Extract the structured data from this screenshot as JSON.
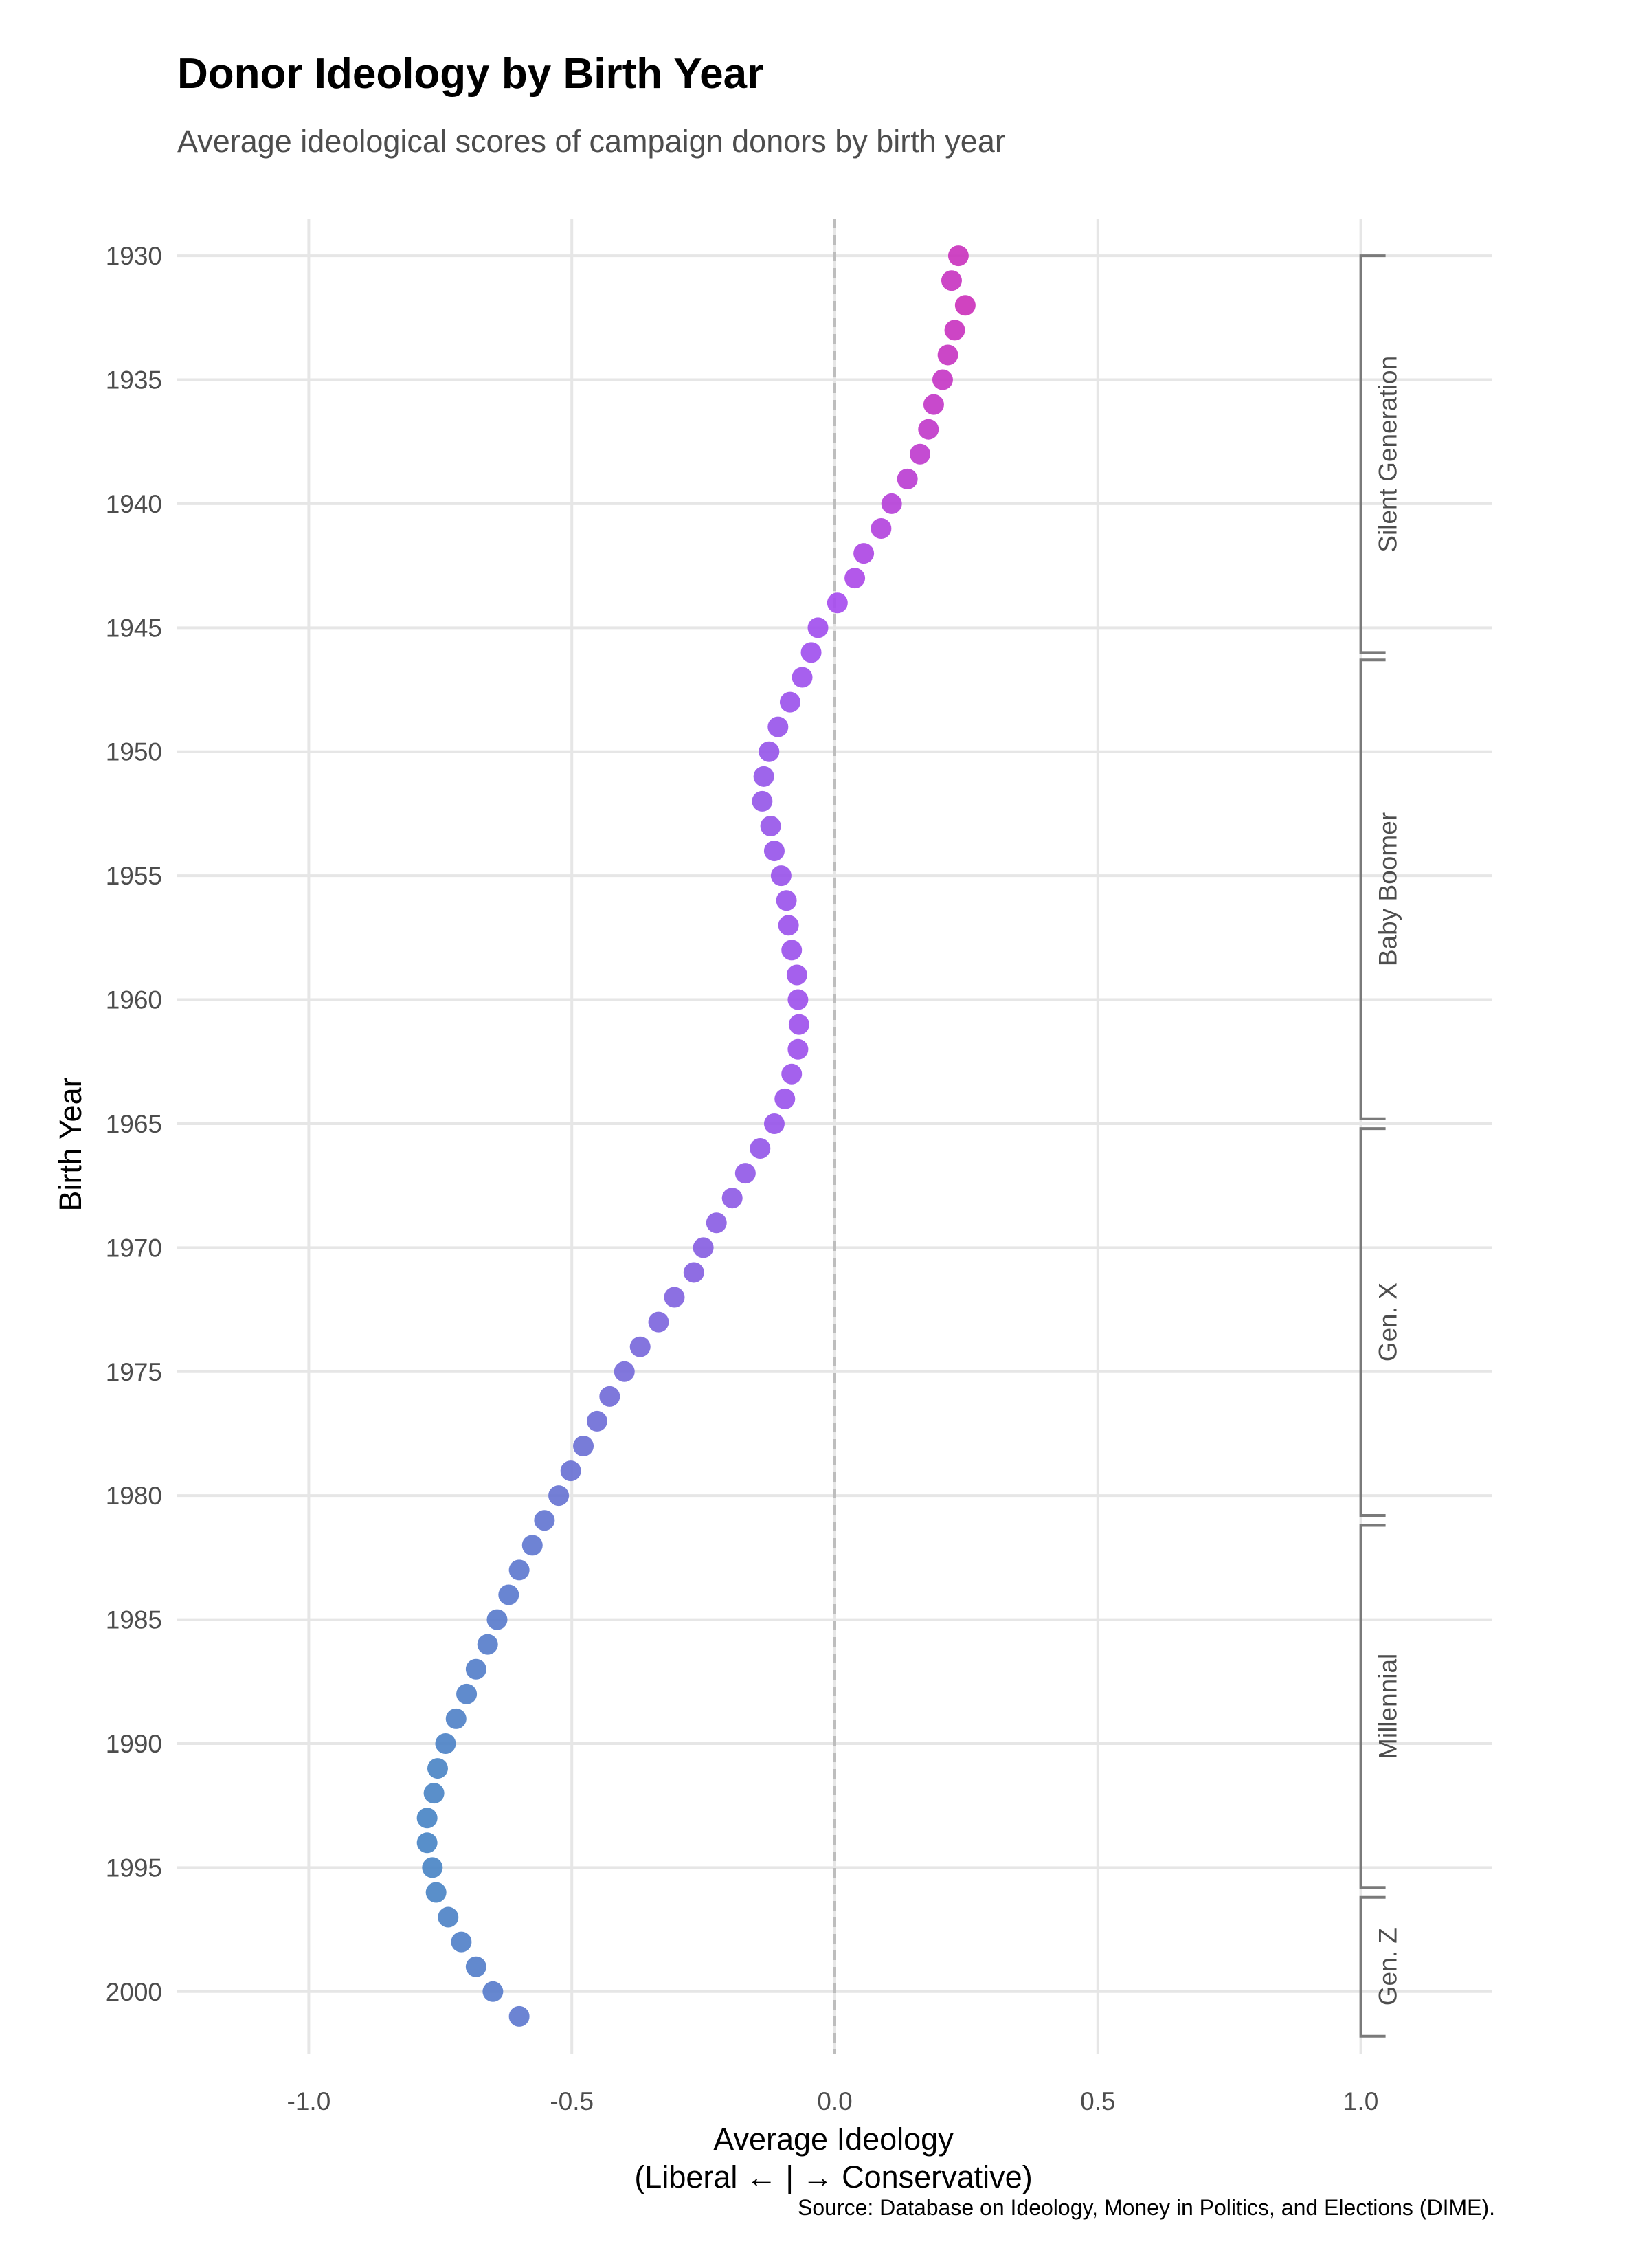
{
  "chart_data": {
    "type": "scatter",
    "title": "Donor Ideology by Birth Year",
    "subtitle": "Average ideological scores of campaign donors by birth year",
    "xlabel_line1": "Average Ideology",
    "xlabel_line2": "(Liberal ← | → Conservative)",
    "ylabel": "Birth Year",
    "source": "Source: Database on Ideology, Money in Politics, and Elections (DIME).",
    "xlim": [
      -1.25,
      1.25
    ],
    "ylim": [
      1928.5,
      2002.5
    ],
    "y_reversed": true,
    "grid": true,
    "reference_line_x": 0,
    "x_ticks": [
      "-1.0",
      "-0.5",
      "0.0",
      "0.5",
      "1.0"
    ],
    "y_ticks": [
      1930,
      1935,
      1940,
      1945,
      1950,
      1955,
      1960,
      1965,
      1970,
      1975,
      1980,
      1985,
      1990,
      1995,
      2000
    ],
    "color_low": "#4a86c5",
    "color_mid": "#a64ef0",
    "color_high": "#cc33bb",
    "generations": [
      {
        "label": "Silent Generation",
        "start": 1930,
        "end": 1946
      },
      {
        "label": "Baby Boomer",
        "start": 1946.3,
        "end": 1964.8
      },
      {
        "label": "Gen. X",
        "start": 1965.2,
        "end": 1980.8
      },
      {
        "label": "Millennial",
        "start": 1981.2,
        "end": 1995.8
      },
      {
        "label": "Gen. Z",
        "start": 1996.2,
        "end": 2001.8
      }
    ],
    "points": [
      {
        "year": 1930,
        "x": 0.235
      },
      {
        "year": 1931,
        "x": 0.222
      },
      {
        "year": 1932,
        "x": 0.248
      },
      {
        "year": 1933,
        "x": 0.228
      },
      {
        "year": 1934,
        "x": 0.215
      },
      {
        "year": 1935,
        "x": 0.205
      },
      {
        "year": 1936,
        "x": 0.188
      },
      {
        "year": 1937,
        "x": 0.178
      },
      {
        "year": 1938,
        "x": 0.162
      },
      {
        "year": 1939,
        "x": 0.138
      },
      {
        "year": 1940,
        "x": 0.108
      },
      {
        "year": 1941,
        "x": 0.088
      },
      {
        "year": 1942,
        "x": 0.055
      },
      {
        "year": 1943,
        "x": 0.038
      },
      {
        "year": 1944,
        "x": 0.005
      },
      {
        "year": 1945,
        "x": -0.032
      },
      {
        "year": 1946,
        "x": -0.045
      },
      {
        "year": 1947,
        "x": -0.062
      },
      {
        "year": 1948,
        "x": -0.085
      },
      {
        "year": 1949,
        "x": -0.108
      },
      {
        "year": 1950,
        "x": -0.125
      },
      {
        "year": 1951,
        "x": -0.135
      },
      {
        "year": 1952,
        "x": -0.138
      },
      {
        "year": 1953,
        "x": -0.122
      },
      {
        "year": 1954,
        "x": -0.115
      },
      {
        "year": 1955,
        "x": -0.102
      },
      {
        "year": 1956,
        "x": -0.092
      },
      {
        "year": 1957,
        "x": -0.088
      },
      {
        "year": 1958,
        "x": -0.082
      },
      {
        "year": 1959,
        "x": -0.072
      },
      {
        "year": 1960,
        "x": -0.07
      },
      {
        "year": 1961,
        "x": -0.068
      },
      {
        "year": 1962,
        "x": -0.07
      },
      {
        "year": 1963,
        "x": -0.082
      },
      {
        "year": 1964,
        "x": -0.095
      },
      {
        "year": 1965,
        "x": -0.115
      },
      {
        "year": 1966,
        "x": -0.142
      },
      {
        "year": 1967,
        "x": -0.17
      },
      {
        "year": 1968,
        "x": -0.195
      },
      {
        "year": 1969,
        "x": -0.225
      },
      {
        "year": 1970,
        "x": -0.25
      },
      {
        "year": 1971,
        "x": -0.268
      },
      {
        "year": 1972,
        "x": -0.305
      },
      {
        "year": 1973,
        "x": -0.335
      },
      {
        "year": 1974,
        "x": -0.37
      },
      {
        "year": 1975,
        "x": -0.4
      },
      {
        "year": 1976,
        "x": -0.428
      },
      {
        "year": 1977,
        "x": -0.452
      },
      {
        "year": 1978,
        "x": -0.478
      },
      {
        "year": 1979,
        "x": -0.502
      },
      {
        "year": 1980,
        "x": -0.525
      },
      {
        "year": 1981,
        "x": -0.552
      },
      {
        "year": 1982,
        "x": -0.575
      },
      {
        "year": 1983,
        "x": -0.6
      },
      {
        "year": 1984,
        "x": -0.62
      },
      {
        "year": 1985,
        "x": -0.642
      },
      {
        "year": 1986,
        "x": -0.66
      },
      {
        "year": 1987,
        "x": -0.682
      },
      {
        "year": 1988,
        "x": -0.7
      },
      {
        "year": 1989,
        "x": -0.72
      },
      {
        "year": 1990,
        "x": -0.74
      },
      {
        "year": 1991,
        "x": -0.755
      },
      {
        "year": 1992,
        "x": -0.762
      },
      {
        "year": 1993,
        "x": -0.775
      },
      {
        "year": 1994,
        "x": -0.775
      },
      {
        "year": 1995,
        "x": -0.765
      },
      {
        "year": 1996,
        "x": -0.758
      },
      {
        "year": 1997,
        "x": -0.735
      },
      {
        "year": 1998,
        "x": -0.71
      },
      {
        "year": 1999,
        "x": -0.682
      },
      {
        "year": 2000,
        "x": -0.65
      },
      {
        "year": 2001,
        "x": -0.6
      }
    ]
  }
}
